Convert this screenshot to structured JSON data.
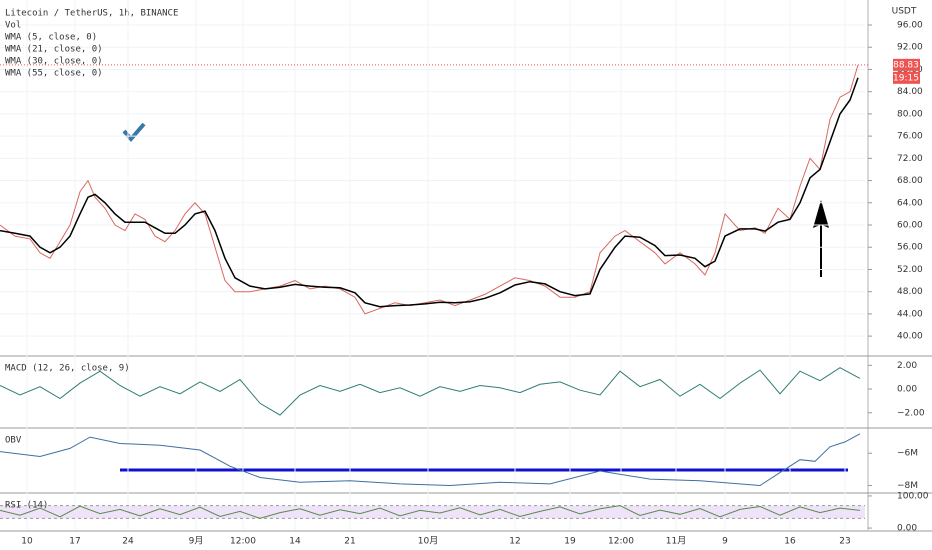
{
  "chart_data": [
    {
      "type": "line",
      "title": "Litecoin / TetherUS, 1h, BINANCE",
      "legend": [
        "Vol",
        "WMA (5, close, 0)",
        "WMA (21, close, 0)",
        "WMA (30, close, 0)",
        "WMA (55, close, 0)"
      ],
      "currency": "USDT",
      "countdown": "19:15",
      "last_price": 88.83,
      "last_price_color": "#ef5350",
      "color": "#d9695f",
      "x": [
        0,
        15,
        30,
        40,
        50,
        60,
        70,
        80,
        88,
        95,
        105,
        115,
        125,
        135,
        145,
        155,
        165,
        175,
        185,
        195,
        205,
        215,
        225,
        235,
        250,
        265,
        280,
        295,
        310,
        325,
        340,
        355,
        365,
        380,
        395,
        410,
        425,
        440,
        455,
        470,
        485,
        500,
        515,
        530,
        545,
        560,
        575,
        590,
        600,
        615,
        625,
        640,
        655,
        665,
        680,
        695,
        705,
        715,
        725,
        740,
        755,
        765,
        778,
        790,
        800,
        810,
        820,
        830,
        840,
        850,
        858
      ],
      "values": [
        60,
        58,
        57.5,
        55,
        54,
        57,
        60,
        66,
        68,
        65,
        63,
        60,
        59,
        62,
        61,
        58,
        57,
        59,
        62,
        64,
        62,
        56,
        50,
        48,
        48,
        48.5,
        49,
        50,
        48.5,
        49,
        48.5,
        47,
        44,
        45,
        46,
        45.5,
        46,
        46.5,
        45.5,
        46.5,
        47.5,
        49,
        50.5,
        50,
        49,
        47,
        47,
        48,
        55,
        58,
        59,
        57,
        55,
        53,
        55,
        53,
        51,
        55,
        62,
        59,
        59.5,
        58.5,
        63,
        61,
        67,
        72,
        70,
        79,
        83,
        84,
        88.8
      ],
      "series": [
        {
          "color": "#000000",
          "values": [
            59,
            58.5,
            58,
            56,
            55,
            56,
            58,
            62,
            65,
            65.5,
            64,
            62,
            60.5,
            60.5,
            60.5,
            59.5,
            58.5,
            58.5,
            60,
            62,
            62.5,
            59,
            54,
            50.5,
            49,
            48.5,
            48.8,
            49.3,
            49,
            48.8,
            48.7,
            47.8,
            46,
            45.3,
            45.5,
            45.6,
            45.8,
            46.1,
            46,
            46.2,
            46.8,
            47.8,
            49.2,
            49.8,
            49.4,
            48,
            47.3,
            47.6,
            52,
            56,
            58,
            57.8,
            56.3,
            54.5,
            54.6,
            54,
            52.5,
            53.5,
            58,
            59.3,
            59.3,
            58.9,
            60.5,
            61,
            64,
            68.5,
            70,
            75,
            80,
            82.5,
            86.5
          ]
        }
      ],
      "xlim": [
        0,
        865
      ],
      "ylim": [
        36.6,
        100.5
      ],
      "yticks": [
        {
          "value": 40,
          "label": "40.00"
        },
        {
          "value": 44,
          "label": "44.00"
        },
        {
          "value": 48,
          "label": "48.00"
        },
        {
          "value": 52,
          "label": "52.00"
        },
        {
          "value": 56,
          "label": "56.00"
        },
        {
          "value": 60,
          "label": "60.00"
        },
        {
          "value": 64,
          "label": "64.00"
        },
        {
          "value": 68,
          "label": "68.00"
        },
        {
          "value": 72,
          "label": "72.00"
        },
        {
          "value": 76,
          "label": "76.00"
        },
        {
          "value": 80,
          "label": "80.00"
        },
        {
          "value": 84,
          "label": "84.00"
        },
        {
          "value": 88,
          "label": "88.00"
        },
        {
          "value": 92,
          "label": "92.00"
        },
        {
          "value": 96,
          "label": "96.00"
        }
      ],
      "xticks": [
        {
          "value": 27,
          "label": "10"
        },
        {
          "value": 75,
          "label": "17"
        },
        {
          "value": 128,
          "label": "24"
        },
        {
          "value": 196,
          "label": "9月"
        },
        {
          "value": 243,
          "label": "12:00"
        },
        {
          "value": 295,
          "label": "14"
        },
        {
          "value": 350,
          "label": "21"
        },
        {
          "value": 428,
          "label": "10月"
        },
        {
          "value": 515,
          "label": "12"
        },
        {
          "value": 570,
          "label": "19"
        },
        {
          "value": 621,
          "label": "12:00"
        },
        {
          "value": 676,
          "label": "11月"
        },
        {
          "value": 725,
          "label": "9"
        },
        {
          "value": 790,
          "label": "16"
        },
        {
          "value": 845,
          "label": "23"
        }
      ],
      "grid": true
    },
    {
      "type": "line",
      "title": "MACD (12, 26, close, 9)",
      "color": "#2e7d74",
      "x": [
        0,
        20,
        40,
        60,
        80,
        100,
        120,
        140,
        160,
        180,
        200,
        220,
        240,
        260,
        280,
        300,
        320,
        340,
        360,
        380,
        400,
        420,
        440,
        460,
        480,
        500,
        520,
        540,
        560,
        580,
        600,
        620,
        640,
        660,
        680,
        700,
        720,
        740,
        760,
        780,
        800,
        820,
        840,
        860
      ],
      "values": [
        0.3,
        -0.5,
        0.2,
        -0.8,
        0.5,
        1.5,
        0.3,
        -0.6,
        0.2,
        -0.4,
        0.6,
        -0.2,
        0.8,
        -1.2,
        -2.2,
        -0.5,
        0.3,
        -0.2,
        0.4,
        -0.3,
        0.1,
        -0.6,
        0.2,
        -0.2,
        0.3,
        0.1,
        -0.3,
        0.4,
        0.6,
        -0.1,
        -0.5,
        1.5,
        0.2,
        0.8,
        -0.6,
        0.4,
        -0.8,
        0.5,
        1.6,
        -0.4,
        1.5,
        0.7,
        1.8,
        0.9
      ],
      "xlim": [
        0,
        865
      ],
      "ylim": [
        -3.2,
        2.7
      ],
      "yticks": [
        {
          "value": 2,
          "label": "2.00"
        },
        {
          "value": 0,
          "label": "0.00"
        },
        {
          "value": -2,
          "label": "−2.00"
        }
      ]
    },
    {
      "type": "line",
      "title": "OBV",
      "color": "#3f6fa0",
      "x": [
        0,
        40,
        70,
        90,
        120,
        160,
        200,
        230,
        260,
        300,
        350,
        400,
        450,
        500,
        550,
        600,
        650,
        700,
        760,
        780,
        800,
        815,
        830,
        845,
        860
      ],
      "values": [
        -5900000,
        -6200000,
        -5700000,
        -5000000,
        -5400000,
        -5500000,
        -5800000,
        -6800000,
        -7500000,
        -7800000,
        -7700000,
        -7900000,
        -8000000,
        -7800000,
        -7900000,
        -7100000,
        -7600000,
        -7700000,
        -8000000,
        -7200000,
        -6400000,
        -6500000,
        -5600000,
        -5300000,
        -4800000
      ],
      "xlim": [
        0,
        865
      ],
      "ylim": [
        -8400000,
        -4500000
      ],
      "yticks": [
        {
          "value": -6000000,
          "label": "−6M"
        },
        {
          "value": -8000000,
          "label": "−8M"
        }
      ]
    },
    {
      "type": "line",
      "title": "RSI (14)",
      "color": "#5b8a4a",
      "bands": [
        30,
        70
      ],
      "x": [
        0,
        20,
        40,
        60,
        80,
        100,
        120,
        140,
        160,
        180,
        200,
        220,
        240,
        260,
        280,
        300,
        320,
        340,
        360,
        380,
        400,
        420,
        440,
        460,
        480,
        500,
        520,
        540,
        560,
        580,
        600,
        620,
        640,
        660,
        680,
        700,
        720,
        740,
        760,
        780,
        800,
        820,
        840,
        860
      ],
      "values": [
        55,
        40,
        62,
        35,
        68,
        45,
        58,
        38,
        60,
        42,
        65,
        36,
        52,
        30,
        48,
        60,
        40,
        57,
        45,
        62,
        38,
        55,
        47,
        63,
        41,
        58,
        36,
        52,
        66,
        44,
        60,
        70,
        39,
        56,
        43,
        61,
        35,
        58,
        67,
        40,
        66,
        48,
        62,
        55
      ],
      "xlim": [
        0,
        865
      ],
      "ylim": [
        -6,
        106
      ],
      "yticks": [
        {
          "value": 100,
          "label": "100.00"
        },
        {
          "value": 0,
          "label": "0.00"
        }
      ]
    }
  ]
}
